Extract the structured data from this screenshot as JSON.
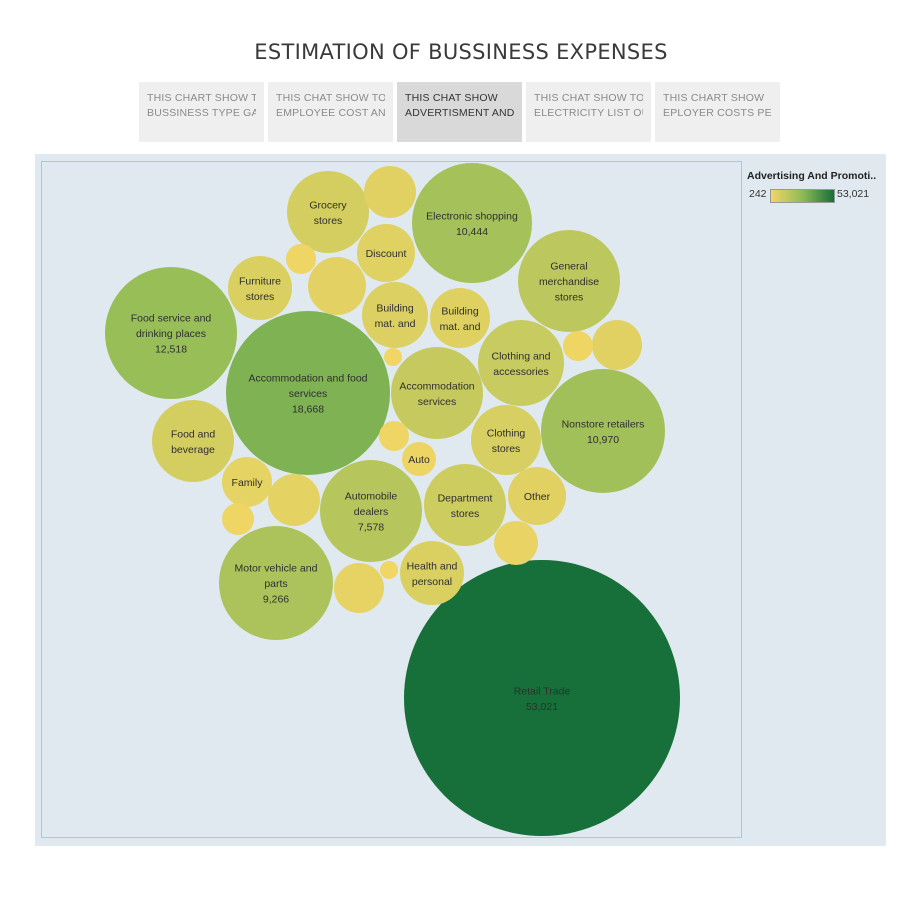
{
  "page": {
    "title": "ESTIMATION OF BUSSINESS EXPENSES"
  },
  "tabs": [
    {
      "line1": "THIS CHART SHOW TO",
      "line2": "BUSSINESS TYPE GAT..",
      "active": false
    },
    {
      "line1": "THIS CHAT SHOW TO",
      "line2": "EMPLOYEE COST AND..",
      "active": false
    },
    {
      "line1": "THIS CHAT SHOW",
      "line2": "ADVERTISMENT AND ..",
      "active": true
    },
    {
      "line1": "THIS CHAT SHOW TO",
      "line2": "ELECTRICITY LIST OUT",
      "active": false
    },
    {
      "line1": "THIS CHART SHOW",
      "line2": "EPLOYER COSTS PEN..",
      "active": false
    }
  ],
  "legend": {
    "title": "Advertising And Promoti..",
    "min": "242",
    "max": "53,021"
  },
  "colors": {
    "low": "#f2d665",
    "mid": "#8dbb56",
    "high": "#176f39"
  },
  "chart_data": {
    "type": "packed-bubble",
    "measure": "Advertising And Promoti..",
    "color_range": [
      242,
      53021
    ],
    "bubbles": [
      {
        "label": [
          "Retail Trade"
        ],
        "value": 53021,
        "value_label": "53,021"
      },
      {
        "label": [
          "Accommodation and food",
          "services"
        ],
        "value": 18668,
        "value_label": "18,668"
      },
      {
        "label": [
          "Food service and",
          "drinking places"
        ],
        "value": 12518,
        "value_label": "12,518"
      },
      {
        "label": [
          "Nonstore retailers"
        ],
        "value": 10970,
        "value_label": "10,970"
      },
      {
        "label": [
          "Electronic shopping"
        ],
        "value": 10444,
        "value_label": "10,444"
      },
      {
        "label": [
          "Motor vehicle and",
          "parts"
        ],
        "value": 9266,
        "value_label": "9,266"
      },
      {
        "label": [
          "Automobile",
          "dealers"
        ],
        "value": 7578,
        "value_label": "7,578"
      },
      {
        "label": [
          "General",
          "merchandise",
          "stores"
        ],
        "value": 6700
      },
      {
        "label": [
          "Accommodation",
          "services"
        ],
        "value": 5300
      },
      {
        "label": [
          "Clothing and",
          "accessories"
        ],
        "value": 5000
      },
      {
        "label": [
          "Department",
          "stores"
        ],
        "value": 4300
      },
      {
        "label": [
          "Grocery",
          "stores"
        ],
        "value": 3300
      },
      {
        "label": [
          "Food and",
          "beverage"
        ],
        "value": 3300
      },
      {
        "label": [
          "Clothing",
          "stores"
        ],
        "value": 3000
      },
      {
        "label": [
          "Health and",
          "personal"
        ],
        "value": 2600
      },
      {
        "label": [
          "Furniture",
          "stores"
        ],
        "value": 2600
      },
      {
        "label": [
          "Building",
          "mat. and"
        ],
        "value": 2400
      },
      {
        "label": [
          "Building",
          "mat. and"
        ],
        "value": 2100
      },
      {
        "label": [
          "Discount"
        ],
        "value": 2000
      },
      {
        "label": [
          "Other"
        ],
        "value": 1900
      },
      {
        "label": [],
        "value": 1900
      },
      {
        "label": [],
        "value": 1800
      },
      {
        "label": [],
        "value": 1500
      },
      {
        "label": [
          "Family"
        ],
        "value": 1300
      },
      {
        "label": [],
        "value": 1400
      },
      {
        "label": [],
        "value": 1200
      },
      {
        "label": [],
        "value": 1000
      },
      {
        "label": [
          "Auto"
        ],
        "value": 600
      },
      {
        "label": [],
        "value": 500
      },
      {
        "label": [],
        "value": 500
      },
      {
        "label": [],
        "value": 500
      },
      {
        "label": [],
        "value": 500
      },
      {
        "label": [],
        "value": 300
      },
      {
        "label": [],
        "value": 242
      }
    ]
  }
}
